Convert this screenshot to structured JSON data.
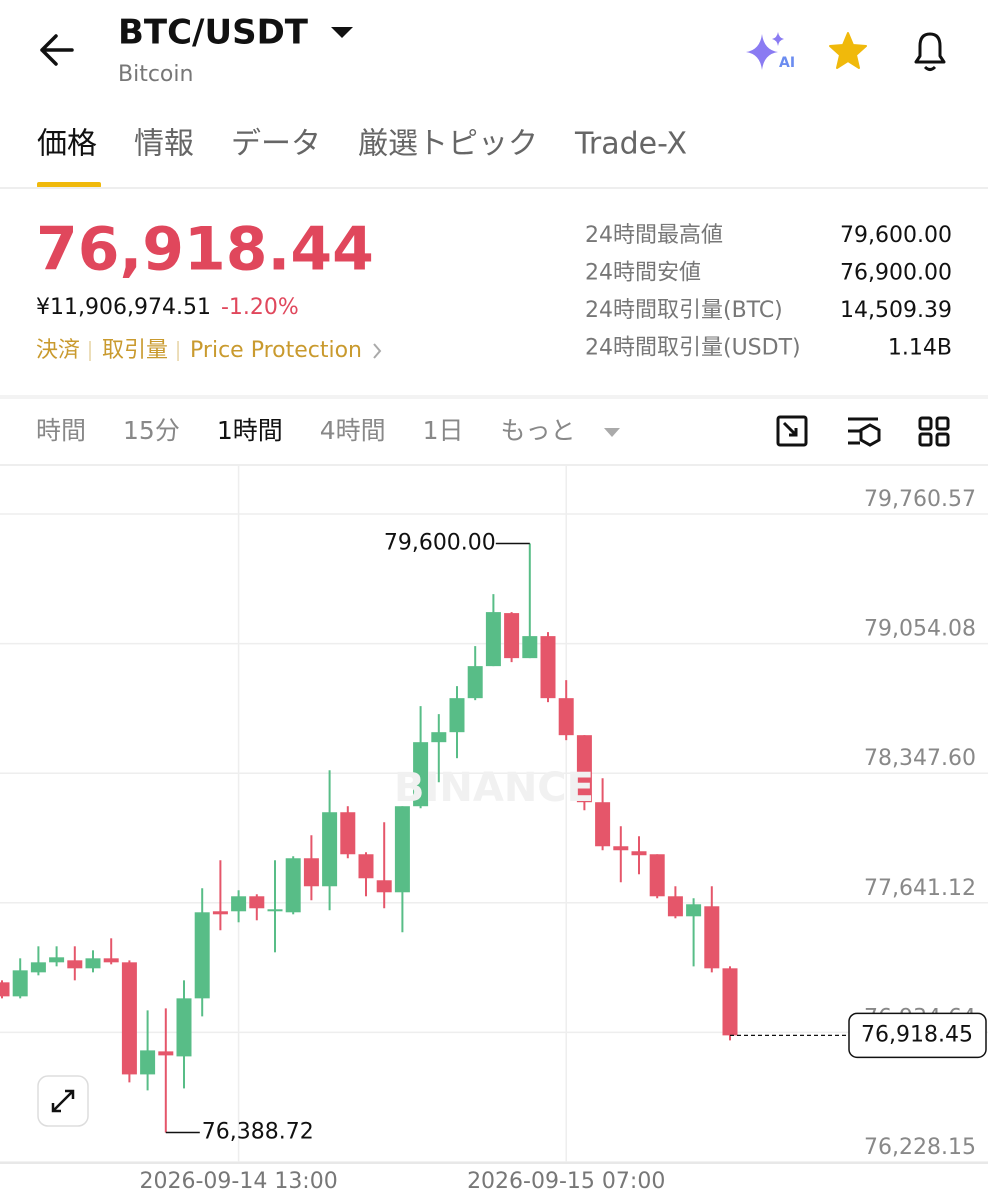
{
  "header": {
    "title": "BTC/USDT",
    "subtitle": "Bitcoin",
    "ai_badge": "AI"
  },
  "tabs": [
    "価格",
    "情報",
    "データ",
    "厳選トピック",
    "Trade-X"
  ],
  "price": {
    "last": "76,918.44",
    "jpy": "¥11,906,974.51",
    "change": "-1.20%",
    "links": [
      "決済",
      "取引量",
      "Price Protection"
    ]
  },
  "stats": [
    [
      "24時間最高値",
      "79,600.00"
    ],
    [
      "24時間安値",
      "76,900.00"
    ],
    [
      "24時間取引量(BTC)",
      "14,509.39"
    ],
    [
      "24時間取引量(USDT)",
      "1.14B"
    ]
  ],
  "intervals": [
    "時間",
    "15分",
    "1時間",
    "4時間",
    "1日",
    "もっと"
  ],
  "watermark": "BINANCE",
  "chart_data": {
    "type": "candlestick",
    "up_color": "#58bd87",
    "down_color": "#e5566a",
    "grid": true,
    "categories": [
      null,
      null,
      null,
      null,
      null,
      null,
      null,
      null,
      null,
      null,
      null,
      null,
      null,
      "2026-09-14 13:00",
      null,
      null,
      null,
      null,
      null,
      null,
      null,
      null,
      null,
      null,
      null,
      null,
      null,
      null,
      null,
      null,
      null,
      "2026-09-15 07:00",
      null,
      null,
      null,
      null,
      null,
      null,
      null,
      null,
      null
    ],
    "open": [
      77207.6,
      77131.2,
      77262.1,
      77316.7,
      77327.6,
      77284.0,
      77338.5,
      77316.7,
      76705.7,
      76831.2,
      76803.9,
      77120.3,
      77594.9,
      77594.9,
      77676.7,
      77594.9,
      77589.4,
      77884.0,
      77731.3,
      78134.9,
      77905.8,
      77764.0,
      77698.5,
      78167.7,
      78516.8,
      78571.3,
      78756.8,
      78931.4,
      79220.5,
      78975.0,
      79095.0,
      78756.8,
      78555.0,
      78189.5,
      77949.4,
      77922.2,
      77905.8,
      77676.7,
      77567.6,
      77622.2,
      77284.0
    ],
    "high": [
      77218.5,
      77338.5,
      77404.0,
      77404.0,
      77404.0,
      77382.1,
      77447.6,
      77327.6,
      77054.8,
      77065.8,
      77218.5,
      77720.4,
      77873.1,
      77709.4,
      77687.6,
      77873.1,
      77894.9,
      78009.5,
      78364.0,
      78167.7,
      77916.7,
      78080.4,
      78167.7,
      78713.2,
      78669.5,
      78822.3,
      79040.5,
      79324.1,
      79225.9,
      79600.0,
      79116.8,
      78855.0,
      78555.0,
      78320.4,
      78058.6,
      78004.0,
      77905.8,
      77731.3,
      77665.8,
      77731.3,
      77294.9
    ],
    "low": [
      77120.3,
      77120.3,
      77245.8,
      77294.9,
      77218.5,
      77262.1,
      77305.8,
      76662.1,
      76618.4,
      76388.72,
      76629.4,
      77022.1,
      77491.2,
      77534.9,
      77545.8,
      77371.2,
      77578.5,
      77654.9,
      77600.3,
      77884.0,
      77676.7,
      77611.3,
      77480.3,
      78156.8,
      78298.6,
      78429.5,
      78745.9,
      78931.4,
      78953.2,
      78975.0,
      78735.0,
      78527.7,
      78145.8,
      77927.6,
      77753.1,
      77796.7,
      77665.8,
      77556.7,
      77294.9,
      77262.1,
      76891.2
    ],
    "close": [
      77131.2,
      77273.0,
      77316.7,
      77344.0,
      77284.0,
      77338.5,
      77316.7,
      76705.7,
      76836.6,
      76809.4,
      77120.3,
      77589.4,
      77578.5,
      77676.7,
      77611.3,
      77605.8,
      77884.0,
      77731.3,
      78134.9,
      77905.8,
      77774.9,
      77698.5,
      78167.7,
      78516.8,
      78571.3,
      78756.8,
      78931.4,
      79225.9,
      78975.0,
      79095.0,
      78756.8,
      78555.0,
      78189.5,
      77949.4,
      77927.6,
      77900.4,
      77676.7,
      77567.6,
      77633.1,
      77284.0,
      76918.45
    ],
    "ylim": [
      76228.15,
      80022.4
    ],
    "yticks": [
      {
        "value": 76228.15,
        "label": "76,228.15"
      },
      {
        "value": 76934.64,
        "label": "76,934.64"
      },
      {
        "value": 77641.12,
        "label": "77,641.12"
      },
      {
        "value": 78347.6,
        "label": "78,347.60"
      },
      {
        "value": 79054.08,
        "label": "79,054.08"
      },
      {
        "value": 79760.57,
        "label": "79,760.57"
      }
    ],
    "high_label": {
      "value": 79600.0,
      "label": "79,600.00"
    },
    "low_label": {
      "value": 76388.72,
      "label": "76,388.72"
    },
    "last_price": {
      "value": 76918.45,
      "label": "76,918.45"
    }
  }
}
